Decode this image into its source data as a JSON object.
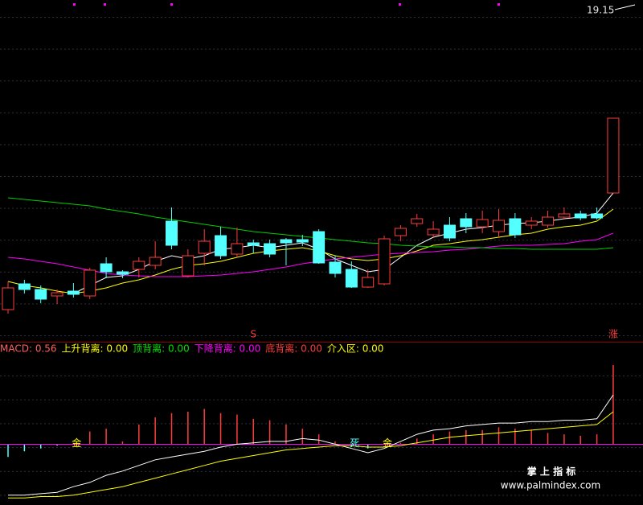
{
  "chart_data": [
    {
      "type": "candlestick",
      "price_label": "19.15",
      "up_color": "#ff3c3c",
      "down_color": "#54ffff",
      "ylim": [
        15.8,
        20.0
      ],
      "open": [
        16.15,
        16.47,
        16.4,
        16.32,
        16.38,
        16.32,
        16.72,
        16.62,
        16.65,
        16.7,
        17.25,
        16.57,
        16.85,
        17.07,
        16.84,
        16.98,
        16.97,
        17.02,
        17.02,
        17.12,
        16.74,
        16.65,
        16.43,
        16.47,
        17.07,
        17.22,
        17.08,
        17.2,
        17.28,
        17.18,
        17.12,
        17.28,
        17.2,
        17.2,
        17.3,
        17.34,
        17.34,
        17.6
      ],
      "close": [
        16.42,
        16.4,
        16.28,
        16.36,
        16.34,
        16.64,
        16.62,
        16.59,
        16.75,
        16.8,
        16.95,
        16.82,
        17.0,
        16.82,
        16.97,
        16.95,
        16.84,
        16.98,
        16.99,
        16.73,
        16.6,
        16.43,
        16.55,
        17.03,
        17.16,
        17.28,
        17.15,
        17.04,
        17.18,
        17.27,
        17.26,
        17.08,
        17.25,
        17.3,
        17.34,
        17.29,
        17.29,
        18.53
      ],
      "high": [
        16.5,
        16.52,
        16.45,
        16.4,
        16.48,
        16.67,
        16.8,
        16.64,
        16.8,
        17.0,
        17.42,
        16.9,
        17.15,
        17.18,
        17.17,
        17.02,
        17.02,
        17.04,
        17.08,
        17.15,
        16.82,
        16.75,
        16.65,
        17.07,
        17.2,
        17.34,
        17.25,
        17.3,
        17.35,
        17.38,
        17.4,
        17.35,
        17.3,
        17.38,
        17.42,
        17.38,
        17.42,
        18.53
      ],
      "low": [
        16.1,
        16.35,
        16.23,
        16.22,
        16.3,
        16.28,
        16.54,
        16.54,
        16.55,
        16.65,
        16.9,
        16.55,
        16.7,
        16.78,
        16.8,
        16.85,
        16.8,
        16.7,
        16.94,
        16.72,
        16.55,
        16.42,
        16.42,
        16.45,
        17.0,
        17.18,
        17.05,
        17.0,
        17.1,
        17.1,
        17.05,
        17.04,
        17.15,
        17.17,
        17.28,
        17.26,
        17.27,
        17.6
      ],
      "lines": [
        {
          "color": "#ffffff",
          "values": [
            null,
            null,
            null,
            null,
            16.35,
            16.45,
            16.55,
            16.57,
            16.65,
            16.75,
            16.82,
            16.78,
            16.82,
            16.9,
            16.92,
            16.95,
            16.92,
            16.95,
            16.98,
            16.9,
            16.78,
            16.7,
            16.62,
            16.65,
            16.8,
            16.95,
            17.05,
            17.1,
            17.15,
            17.17,
            17.2,
            17.22,
            17.23,
            17.25,
            17.28,
            17.3,
            17.35,
            17.6
          ]
        },
        {
          "color": "#ffff00",
          "values": [
            16.5,
            16.45,
            16.42,
            16.38,
            16.35,
            16.38,
            16.42,
            16.48,
            16.52,
            16.58,
            16.65,
            16.7,
            16.72,
            16.75,
            16.8,
            16.85,
            16.88,
            16.9,
            16.92,
            16.88,
            16.82,
            16.78,
            16.76,
            16.78,
            16.82,
            16.88,
            16.95,
            16.97,
            17.0,
            17.02,
            17.05,
            17.08,
            17.1,
            17.15,
            17.18,
            17.2,
            17.25,
            17.4
          ]
        },
        {
          "color": "#ff00ff",
          "values": [
            16.8,
            16.78,
            16.75,
            16.72,
            16.68,
            16.64,
            16.6,
            16.58,
            16.57,
            16.56,
            16.56,
            16.56,
            16.57,
            16.58,
            16.6,
            16.62,
            16.65,
            16.68,
            16.72,
            16.75,
            16.78,
            16.8,
            16.82,
            16.84,
            16.85,
            16.86,
            16.87,
            16.89,
            16.9,
            16.92,
            16.94,
            16.95,
            16.95,
            16.96,
            16.97,
            17.0,
            17.02,
            17.1
          ]
        },
        {
          "color": "#00d000",
          "values": [
            17.54,
            17.52,
            17.5,
            17.48,
            17.46,
            17.44,
            17.4,
            17.37,
            17.34,
            17.3,
            17.27,
            17.24,
            17.21,
            17.18,
            17.15,
            17.12,
            17.1,
            17.08,
            17.06,
            17.04,
            17.02,
            17.0,
            16.98,
            16.97,
            16.95,
            16.94,
            16.93,
            16.93,
            16.92,
            16.92,
            16.91,
            16.91,
            16.9,
            16.9,
            16.9,
            16.9,
            16.9,
            16.92
          ]
        }
      ],
      "markers": [
        {
          "text": "S",
          "index": 15,
          "color": "#ff3c3c"
        },
        {
          "text": "涨",
          "index": 37,
          "color": "#ff3c3c"
        }
      ]
    },
    {
      "type": "macd",
      "ylim": [
        -0.43,
        0.64
      ],
      "header": [
        {
          "text": "MACD: 0.56",
          "color": "#ff6060"
        },
        {
          "text": "上升背离: 0.00",
          "color": "#ffff00"
        },
        {
          "text": "顶背离: 0.00",
          "color": "#00e000"
        },
        {
          "text": "下降背离: 0.00",
          "color": "#ff00ff"
        },
        {
          "text": "底背离: 0.00",
          "color": "#ff3c3c"
        },
        {
          "text": "介入区: 0.00",
          "color": "#ffff00"
        }
      ],
      "histogram": [
        -0.09,
        -0.05,
        -0.03,
        -0.01,
        0.01,
        0.09,
        0.11,
        0.02,
        0.14,
        0.19,
        0.22,
        0.23,
        0.25,
        0.22,
        0.21,
        0.18,
        0.17,
        0.14,
        0.11,
        0.07,
        0.02,
        -0.02,
        -0.03,
        0.01,
        0.01,
        0.04,
        0.07,
        0.09,
        0.1,
        0.1,
        0.12,
        0.11,
        0.1,
        0.08,
        0.07,
        0.06,
        0.07,
        0.56
      ],
      "up_color": "#ff3c3c",
      "down_color": "#54ffff",
      "zero_color": "#ff00ff",
      "dif": {
        "color": "#ffffff",
        "values": [
          -0.36,
          -0.36,
          -0.35,
          -0.34,
          -0.3,
          -0.27,
          -0.22,
          -0.19,
          -0.15,
          -0.11,
          -0.09,
          -0.07,
          -0.05,
          -0.02,
          0.0,
          0.01,
          0.02,
          0.02,
          0.04,
          0.03,
          0.0,
          -0.03,
          -0.06,
          -0.03,
          0.02,
          0.07,
          0.1,
          0.11,
          0.13,
          0.14,
          0.15,
          0.15,
          0.16,
          0.16,
          0.17,
          0.17,
          0.18,
          0.35
        ]
      },
      "dea": {
        "color": "#ffff00",
        "values": [
          -0.38,
          -0.38,
          -0.37,
          -0.37,
          -0.36,
          -0.34,
          -0.32,
          -0.3,
          -0.27,
          -0.24,
          -0.21,
          -0.18,
          -0.15,
          -0.12,
          -0.1,
          -0.08,
          -0.06,
          -0.04,
          -0.03,
          -0.02,
          -0.01,
          -0.01,
          -0.02,
          -0.02,
          -0.01,
          0.01,
          0.03,
          0.05,
          0.06,
          0.07,
          0.08,
          0.09,
          0.1,
          0.11,
          0.12,
          0.13,
          0.14,
          0.23
        ]
      },
      "signals": [
        {
          "text": "金",
          "index": 4,
          "color": "#ffff00"
        },
        {
          "text": "死",
          "index": 21,
          "color": "#54ffff"
        },
        {
          "text": "金",
          "index": 23,
          "color": "#ffff00"
        }
      ]
    }
  ],
  "watermark": {
    "title": "掌 上 指 标",
    "url": "www.palmindex.com"
  }
}
